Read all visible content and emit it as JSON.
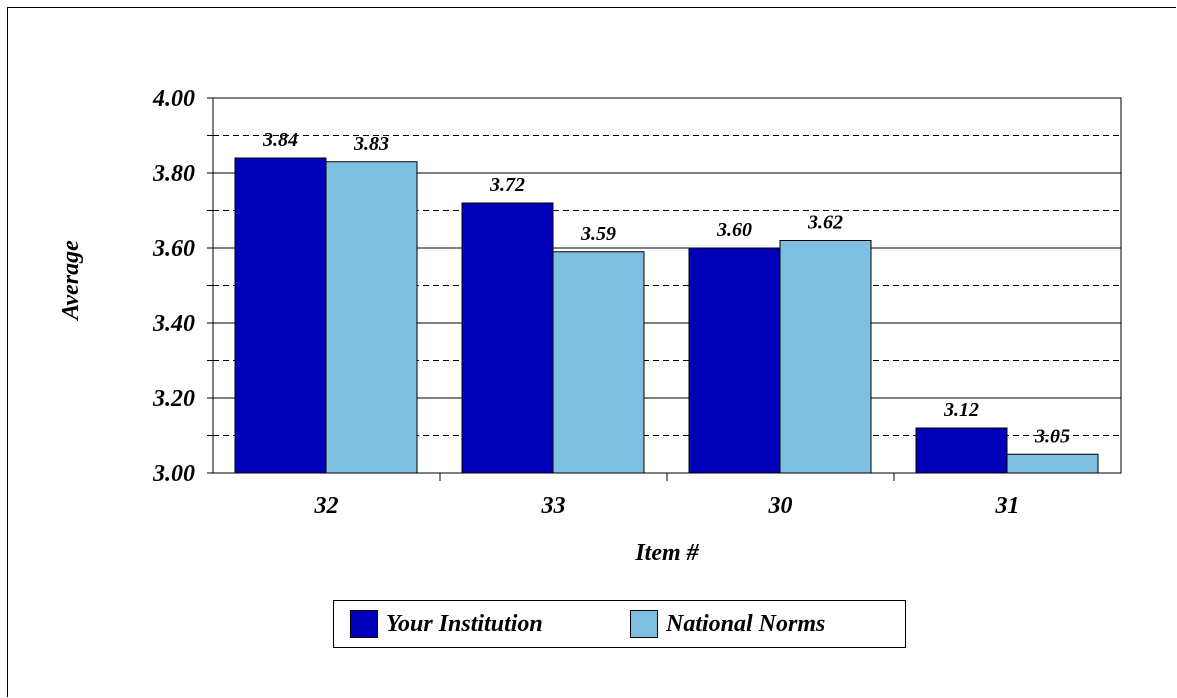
{
  "chart_data": {
    "type": "bar",
    "categories": [
      "32",
      "33",
      "30",
      "31"
    ],
    "series": [
      {
        "name": "Your Institution",
        "values": [
          3.84,
          3.72,
          3.6,
          3.12
        ],
        "labels": [
          "3.84",
          "3.72",
          "3.60",
          "3.12"
        ],
        "color": "#0000b8"
      },
      {
        "name": "National Norms",
        "values": [
          3.83,
          3.59,
          3.62,
          3.05
        ],
        "labels": [
          "3.83",
          "3.59",
          "3.62",
          "3.05"
        ],
        "color": "#7fbfdf"
      }
    ],
    "ylim": [
      3.0,
      4.0
    ],
    "yticks": [
      "3.00",
      "3.20",
      "3.40",
      "3.60",
      "3.80",
      "4.00"
    ],
    "xlabel": "Item #",
    "ylabel": "Average",
    "grid": {
      "solid_every": 0.2,
      "dashed_every": 0.1
    },
    "legend_position": "bottom"
  }
}
